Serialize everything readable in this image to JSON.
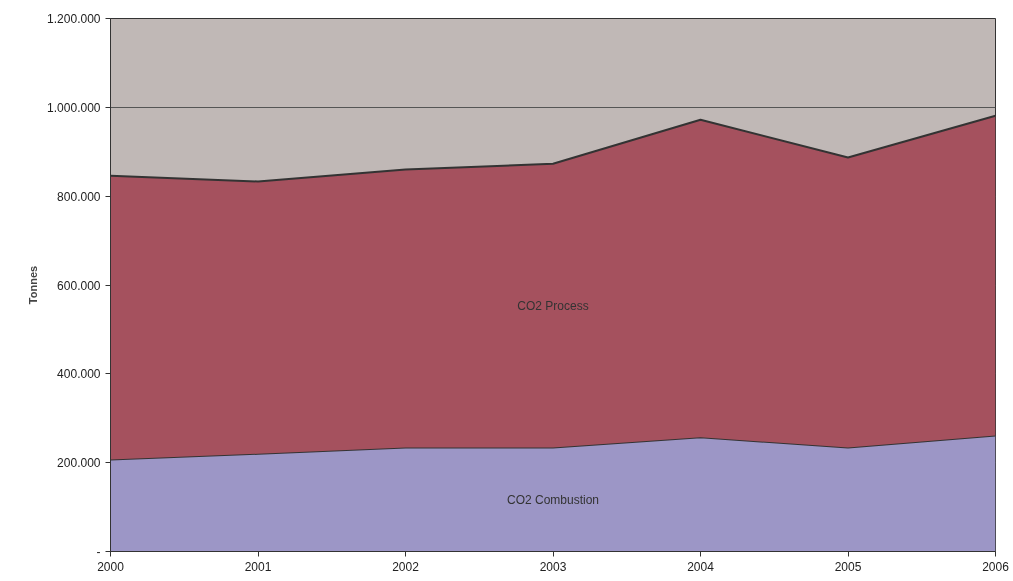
{
  "chart_data": {
    "type": "area",
    "stacked": true,
    "ylabel": "Tonnes",
    "x": [
      2000,
      2001,
      2002,
      2003,
      2004,
      2005,
      2006
    ],
    "series": [
      {
        "name": "CO2 Combustion",
        "color": "#9c96c6",
        "values": [
          207000,
          220000,
          234000,
          234000,
          257000,
          234000,
          261000
        ]
      },
      {
        "name": "CO2 Process",
        "color": "#a5515e",
        "values": [
          639000,
          613000,
          626000,
          639000,
          715000,
          653000,
          720000
        ]
      }
    ],
    "xlim": [
      2000,
      2006
    ],
    "xticks": [
      2000,
      2001,
      2002,
      2003,
      2004,
      2005,
      2006
    ],
    "ylim": [
      0,
      1200000
    ],
    "yticks": [
      {
        "value": 0,
        "label": "-"
      },
      {
        "value": 200000,
        "label": "200.000"
      },
      {
        "value": 400000,
        "label": "400.000"
      },
      {
        "value": 600000,
        "label": "600.000"
      },
      {
        "value": 800000,
        "label": "800.000"
      },
      {
        "value": 1000000,
        "label": "1.000.000"
      },
      {
        "value": 1200000,
        "label": "1.200.000"
      }
    ],
    "grid": "y",
    "legend": false
  }
}
